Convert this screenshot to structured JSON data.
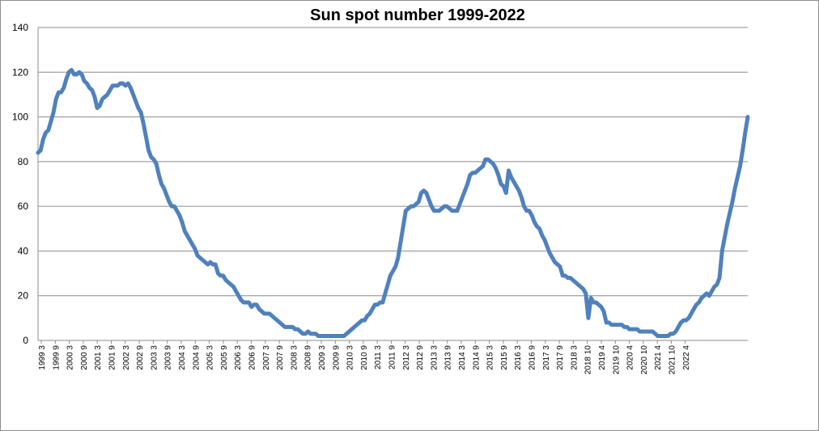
{
  "chart_data": {
    "type": "line",
    "title": "Sun spot number 1999-2022",
    "xlabel": "",
    "ylabel": "",
    "ylim": [
      0,
      140
    ],
    "yticks": [
      0,
      20,
      40,
      60,
      80,
      100,
      120,
      140
    ],
    "grid": true,
    "line_color": "#4f81bd",
    "x_tick_labels": [
      "1999 3",
      "1999 9",
      "2000 3",
      "2000 9",
      "2001 3",
      "2001 9",
      "2002 3",
      "2002 9",
      "2003 3",
      "2003 9",
      "2004 3",
      "2004 9",
      "2005 3",
      "2005 9",
      "2006 3",
      "2006 9",
      "2007 3",
      "2007 9",
      "2008 3",
      "2008 9",
      "2009 3",
      "2009 9",
      "2010 3",
      "2010 9",
      "2011 3",
      "2011 9",
      "2012 3",
      "2012 9",
      "2013 3",
      "2013 9",
      "2014 3",
      "2014 9",
      "2015 3",
      "2015 9",
      "2016 3",
      "2016 9",
      "2017 3",
      "2017 9",
      "2018 3",
      "2018 10",
      "2019 4",
      "2019 10",
      "2020 4",
      "2020 10",
      "2021 4",
      "2021 10",
      "2022 4"
    ],
    "series": [
      {
        "values": [
          84,
          85,
          90,
          93,
          94,
          98,
          102,
          108,
          111,
          111,
          113,
          117,
          120,
          121,
          119,
          119,
          120,
          119,
          116,
          115,
          113,
          112,
          109,
          104,
          105,
          108,
          109,
          110,
          112,
          114,
          114,
          114,
          115,
          115,
          114,
          115,
          113,
          110,
          107,
          104,
          102,
          97,
          91,
          85,
          82,
          81,
          79,
          74,
          70,
          68,
          65,
          62,
          60,
          60,
          58,
          56,
          53,
          49,
          47,
          45,
          43,
          41,
          38,
          37,
          36,
          35,
          34,
          35,
          34,
          34,
          30,
          29,
          29,
          27,
          26,
          25,
          24,
          22,
          20,
          18,
          17,
          17,
          17,
          15,
          16,
          16,
          14,
          13,
          12,
          12,
          12,
          11,
          10,
          9,
          8,
          7,
          6,
          6,
          6,
          6,
          5,
          5,
          4,
          3,
          3,
          4,
          3,
          3,
          3,
          2,
          2,
          2,
          2,
          2,
          2,
          2,
          2,
          2,
          2,
          2,
          3,
          4,
          5,
          6,
          7,
          8,
          9,
          9,
          11,
          12,
          14,
          16,
          16,
          17,
          17,
          21,
          25,
          29,
          31,
          33,
          37,
          44,
          51,
          58,
          59,
          60,
          60,
          61,
          62,
          66,
          67,
          66,
          63,
          60,
          58,
          58,
          58,
          59,
          60,
          60,
          59,
          58,
          58,
          58,
          61,
          64,
          67,
          70,
          74,
          75,
          75,
          76,
          77,
          78,
          81,
          81,
          80,
          79,
          77,
          74,
          70,
          69,
          66,
          76,
          73,
          71,
          69,
          67,
          64,
          60,
          58,
          58,
          56,
          53,
          51,
          50,
          47,
          45,
          42,
          39,
          37,
          35,
          34,
          33,
          29,
          29,
          28,
          28,
          27,
          26,
          25,
          24,
          23,
          21,
          10,
          19,
          17,
          17,
          16,
          15,
          13,
          8,
          8,
          7,
          7,
          7,
          7,
          7,
          6,
          6,
          5,
          5,
          5,
          5,
          4,
          4,
          4,
          4,
          4,
          4,
          3,
          2,
          2,
          2,
          2,
          2,
          3,
          3,
          4,
          6,
          8,
          9,
          9,
          10,
          12,
          14,
          16,
          17,
          19,
          20,
          21,
          20,
          22,
          24,
          25,
          28,
          40,
          46,
          52,
          57,
          62,
          68,
          73,
          78,
          85,
          93,
          100
        ]
      }
    ]
  }
}
